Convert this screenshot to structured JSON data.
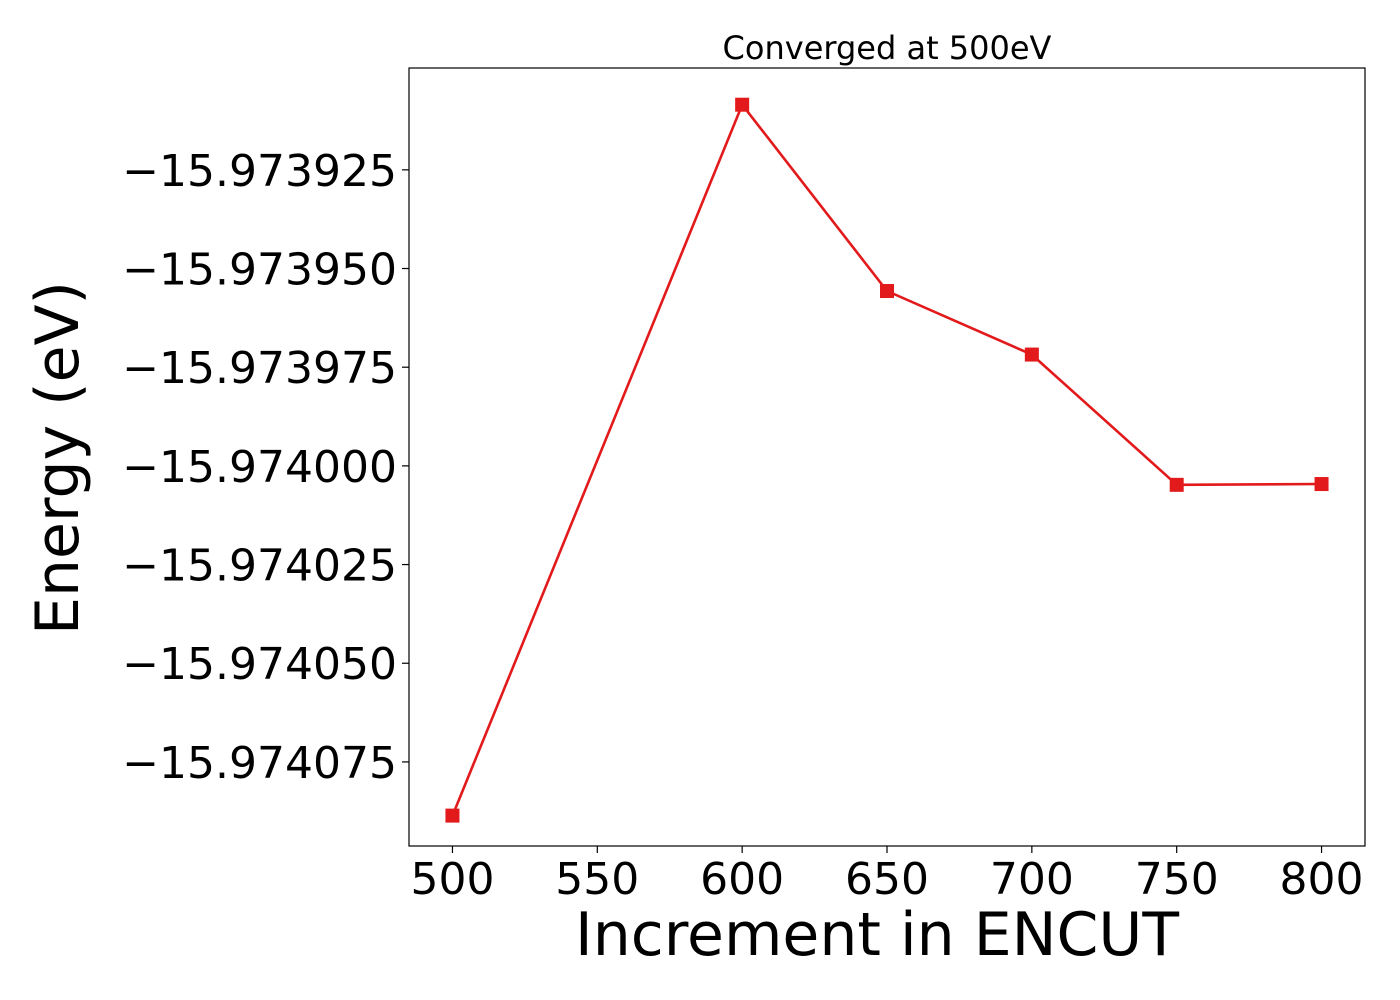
{
  "chart_data": {
    "type": "line",
    "title": "Converged at 500eV",
    "xlabel": "Increment in ENCUT",
    "ylabel": "Energy (eV)",
    "x": [
      500,
      600,
      650,
      700,
      750,
      800
    ],
    "series": [
      {
        "values": [
          -15.9740886,
          -15.9739085,
          -15.9739557,
          -15.9739718,
          -15.9740048,
          -15.9740046
        ],
        "color": "#e31a1c",
        "marker": "square"
      }
    ],
    "xlim": [
      485,
      815
    ],
    "ylim": [
      -15.9740963,
      -15.9738992
    ],
    "xticks": [
      500,
      550,
      600,
      650,
      700,
      750,
      800
    ],
    "xtick_labels": [
      "500",
      "550",
      "600",
      "650",
      "700",
      "750",
      "800"
    ],
    "yticks": [
      -15.973925,
      -15.97395,
      -15.973975,
      -15.974,
      -15.974025,
      -15.97405,
      -15.974075
    ],
    "ytick_labels": [
      "−15.973925",
      "−15.973950",
      "−15.973975",
      "−15.974000",
      "−15.974025",
      "−15.974050",
      "−15.974075"
    ],
    "grid": false,
    "legend": "none"
  }
}
